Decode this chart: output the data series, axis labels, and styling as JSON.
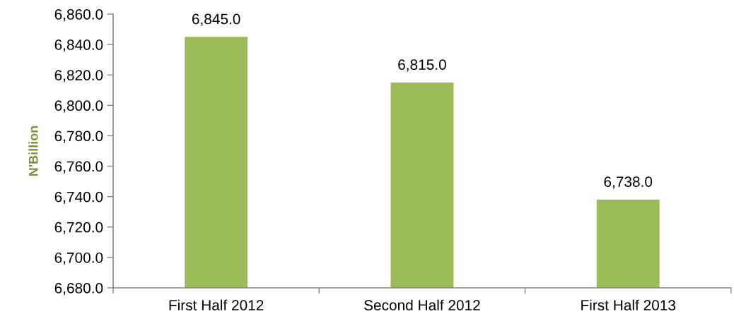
{
  "chart_data": {
    "type": "bar",
    "ylabel": "N'Billion",
    "categories": [
      "First Half 2012",
      "Second Half 2012",
      "First Half 2013"
    ],
    "values": [
      6845.0,
      6815.0,
      6738.0
    ],
    "value_labels": [
      "6,845.0",
      "6,815.0",
      "6,738.0"
    ],
    "color": "#9bbb59",
    "ylim": [
      6680,
      6860
    ],
    "yticks": [
      {
        "value": 6680,
        "label": "6,680.0"
      },
      {
        "value": 6700,
        "label": "6,700.0"
      },
      {
        "value": 6720,
        "label": "6,720.0"
      },
      {
        "value": 6740,
        "label": "6,740.0"
      },
      {
        "value": 6760,
        "label": "6,760.0"
      },
      {
        "value": 6780,
        "label": "6,780.0"
      },
      {
        "value": 6800,
        "label": "6,800.0"
      },
      {
        "value": 6820,
        "label": "6,820.0"
      },
      {
        "value": 6840,
        "label": "6,840.0"
      },
      {
        "value": 6860,
        "label": "6,860.0"
      }
    ],
    "grid": false,
    "legend": false
  }
}
